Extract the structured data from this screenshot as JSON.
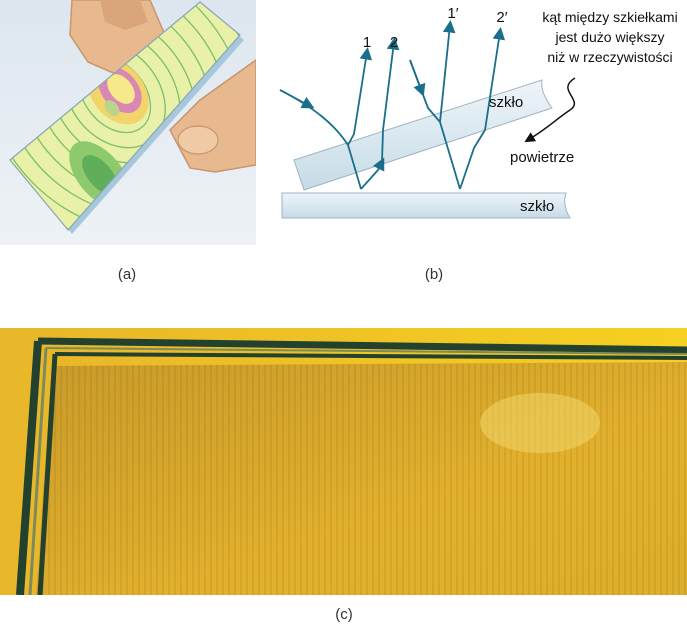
{
  "captions": {
    "a": "(a)",
    "b": "(b)",
    "c": "(c)"
  },
  "diagram_b": {
    "ray_labels": {
      "r1": "1",
      "r2": "2",
      "r1p": "1′",
      "r2p": "2′"
    },
    "glass_upper": "szkło",
    "glass_lower": "szkło",
    "air": "powietrze",
    "note_lines": [
      "kąt między szkiełkami",
      "jest dużo większy",
      "niż w rzeczywistości"
    ],
    "colors": {
      "ray": "#1a6f8a",
      "glass_fill": "#d7e8f1",
      "glass_stroke": "#9fb3bf"
    }
  },
  "photo_c": {
    "colors": {
      "background": "#f0c020",
      "interior": "#d8a828",
      "frame": "#23412f"
    }
  }
}
